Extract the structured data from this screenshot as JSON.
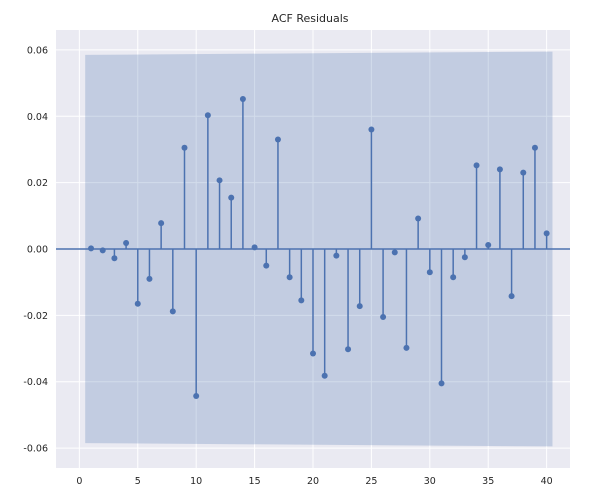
{
  "chart_data": {
    "type": "stem",
    "title": "ACF Residuals",
    "xlabel": "",
    "ylabel": "",
    "xlim": [
      -2,
      42
    ],
    "ylim": [
      -0.066,
      0.066
    ],
    "xticks": [
      0,
      5,
      10,
      15,
      20,
      25,
      30,
      35,
      40
    ],
    "xtick_labels": [
      "0",
      "5",
      "10",
      "15",
      "20",
      "25",
      "30",
      "35",
      "40"
    ],
    "yticks": [
      -0.06,
      -0.04,
      -0.02,
      0.0,
      0.02,
      0.04,
      0.06
    ],
    "ytick_labels": [
      "-0.06",
      "-0.04",
      "-0.02",
      "0.00",
      "0.02",
      "0.04",
      "0.06"
    ],
    "grid": true,
    "lags": [
      1,
      2,
      3,
      4,
      5,
      6,
      7,
      8,
      9,
      10,
      11,
      12,
      13,
      14,
      15,
      16,
      17,
      18,
      19,
      20,
      21,
      22,
      23,
      24,
      25,
      26,
      27,
      28,
      29,
      30,
      31,
      32,
      33,
      34,
      35,
      36,
      37,
      38,
      39,
      40
    ],
    "values": [
      0.0002,
      -0.0004,
      -0.0028,
      0.0018,
      -0.0165,
      -0.009,
      0.0078,
      -0.0188,
      0.0305,
      -0.0443,
      0.0403,
      0.0207,
      0.0155,
      0.0452,
      0.0005,
      -0.005,
      0.033,
      -0.0085,
      -0.0155,
      -0.0315,
      -0.0382,
      -0.002,
      -0.0302,
      -0.0172,
      0.036,
      -0.0205,
      -0.001,
      -0.0298,
      0.0092,
      -0.007,
      -0.0405,
      -0.0085,
      -0.0025,
      0.0252,
      0.0012,
      0.024,
      -0.0142,
      0.023,
      0.0305,
      0.0047
    ],
    "confidence_band": {
      "x_start": 0.5,
      "x_end": 40.5,
      "lower_start": -0.0585,
      "lower_end": -0.0595,
      "upper_start": 0.0585,
      "upper_end": 0.0595
    },
    "colors": {
      "stem": "#4c72b0",
      "band": "#4c72b0",
      "background": "#eaeaf2",
      "zero_line": "#4c72b0"
    }
  }
}
